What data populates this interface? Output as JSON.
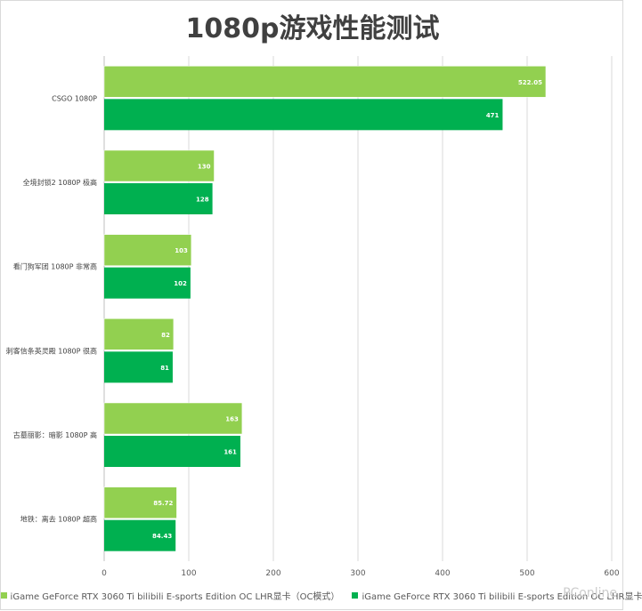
{
  "chart_data": {
    "type": "bar",
    "orientation": "horizontal",
    "title": "1080p游戏性能测试",
    "categories": [
      "CSGO 1080P",
      "全境封锁2 1080P 极高",
      "看门狗军团 1080P 非常高",
      "刺客信条英灵殿 1080P 很高",
      "古墓丽影：暗影 1080P 高",
      "地铁：离去 1080P 超高"
    ],
    "series": [
      {
        "name": "iGame GeForce RTX 3060  Ti bilibili E-sports Edition OC LHR显卡（OC模式）",
        "color": "#92d050",
        "values": [
          522.05,
          130,
          103,
          82,
          163,
          85.72
        ],
        "labels": [
          "522.05",
          "130",
          "103",
          "82",
          "163",
          "85.72"
        ]
      },
      {
        "name": "iGame GeForce RTX 3060  Ti bilibili E-sports Edition OC LHR显卡",
        "color": "#00b050",
        "values": [
          471,
          128,
          102,
          81,
          161,
          84.43
        ],
        "labels": [
          "471",
          "128",
          "102",
          "81",
          "161",
          "84.43"
        ]
      }
    ],
    "xlim": [
      0,
      600
    ],
    "xticks": [
      0,
      100,
      200,
      300,
      400,
      500,
      600
    ],
    "xtick_labels": [
      "0",
      "100",
      "200",
      "300",
      "400",
      "500",
      "600"
    ],
    "grid": true,
    "legend_position": "bottom"
  },
  "watermark": "PConline"
}
